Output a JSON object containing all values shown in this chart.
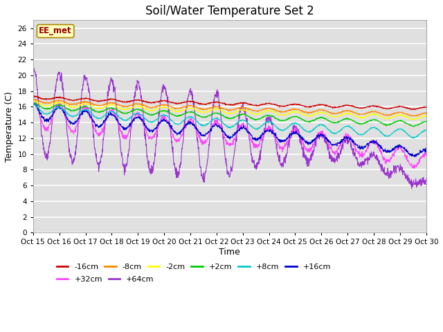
{
  "title": "Soil/Water Temperature Set 2",
  "xlabel": "Time",
  "ylabel": "Temperature (C)",
  "ylim": [
    0,
    27
  ],
  "yticks": [
    0,
    2,
    4,
    6,
    8,
    10,
    12,
    14,
    16,
    18,
    20,
    22,
    24,
    26
  ],
  "series": {
    "-16cm": {
      "color": "#cc0000",
      "base": 17.2,
      "final": 15.8,
      "amplitude": 0.15
    },
    "-8cm": {
      "color": "#ff8800",
      "base": 16.8,
      "final": 15.0,
      "amplitude": 0.2
    },
    "-2cm": {
      "color": "#ffff00",
      "base": 16.5,
      "final": 14.6,
      "amplitude": 0.25
    },
    "+2cm": {
      "color": "#00cc00",
      "base": 16.2,
      "final": 13.8,
      "amplitude": 0.3
    },
    "+8cm": {
      "color": "#00cccc",
      "base": 15.8,
      "final": 12.5,
      "amplitude": 0.5
    },
    "+16cm": {
      "color": "#0000cc",
      "base": 15.5,
      "final": 10.8,
      "amplitude": 1.0
    },
    "+32cm": {
      "color": "#ff44ff",
      "base": 15.2,
      "final": 10.5,
      "amplitude": 1.8
    },
    "+64cm": {
      "color": "#9933cc",
      "base": 15.5,
      "final": 9.5,
      "amplitude": 5.5
    }
  },
  "xtick_labels": [
    "Oct 15",
    "Oct 16",
    "Oct 17",
    "Oct 18",
    "Oct 19",
    "Oct 20",
    "Oct 21",
    "Oct 22",
    "Oct 23",
    "Oct 24",
    "Oct 25",
    "Oct 26",
    "Oct 27",
    "Oct 28",
    "Oct 29",
    "Oct 30"
  ],
  "legend_label": "EE_met",
  "plot_bg_color": "#e0e0e0",
  "grid_color": "#ffffff",
  "title_fontsize": 12,
  "axis_fontsize": 9,
  "n_points": 1500
}
